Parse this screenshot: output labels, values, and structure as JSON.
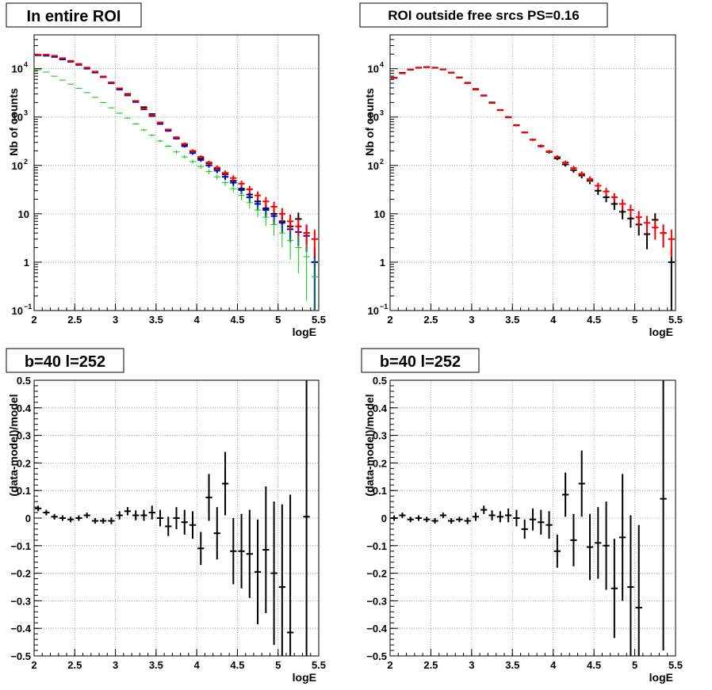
{
  "chart_data": [
    {
      "type": "scatter",
      "title": "In entire ROI",
      "xlabel": "logE",
      "ylabel": "Nb of counts",
      "xlim": [
        2,
        5.5
      ],
      "ylim": [
        0.1,
        50000
      ],
      "yscale": "log",
      "grid": true,
      "x_ticks": [
        "2",
        "2.5",
        "3",
        "3.5",
        "4",
        "4.5",
        "5",
        "5.5"
      ],
      "y_ticks": [
        {
          "v": 0.1,
          "b": "10",
          "e": "−1"
        },
        {
          "v": 1,
          "b": "1",
          "e": ""
        },
        {
          "v": 10,
          "b": "10",
          "e": ""
        },
        {
          "v": 100,
          "b": "10",
          "e": "2"
        },
        {
          "v": 1000,
          "b": "10",
          "e": "3"
        },
        {
          "v": 10000,
          "b": "10",
          "e": "4"
        }
      ],
      "x": [
        2.05,
        2.15,
        2.25,
        2.35,
        2.45,
        2.55,
        2.65,
        2.75,
        2.85,
        2.95,
        3.05,
        3.15,
        3.25,
        3.35,
        3.45,
        3.55,
        3.65,
        3.75,
        3.85,
        3.95,
        4.05,
        4.15,
        4.25,
        4.35,
        4.45,
        4.55,
        4.65,
        4.75,
        4.85,
        4.95,
        5.05,
        5.15,
        5.25,
        5.35,
        5.45
      ],
      "series": [
        {
          "color": "#000000",
          "values": [
            19000,
            19000,
            18000,
            16000,
            14000,
            12500,
            10500,
            8600,
            6900,
            5200,
            3900,
            3000,
            2150,
            1600,
            1150,
            770,
            550,
            380,
            270,
            195,
            140,
            110,
            85,
            65,
            48,
            33,
            25,
            18,
            13,
            10,
            7,
            5.5,
            7.8,
            4,
            1
          ]
        },
        {
          "color": "#0000cc",
          "values": [
            19000,
            18500,
            17500,
            15500,
            14000,
            12000,
            10000,
            8300,
            6700,
            5000,
            3700,
            2800,
            2050,
            1450,
            1050,
            720,
            520,
            360,
            250,
            180,
            130,
            100,
            78,
            58,
            44,
            31,
            22,
            16,
            12,
            9,
            6.5,
            4.8,
            4.2,
            3.5,
            1
          ]
        },
        {
          "color": "#ff0000",
          "values": [
            19500,
            19500,
            18500,
            16500,
            14500,
            12500,
            10500,
            8700,
            6900,
            5200,
            3900,
            2900,
            2150,
            1500,
            1100,
            760,
            550,
            380,
            280,
            200,
            150,
            115,
            90,
            70,
            55,
            42,
            32,
            24,
            18,
            14,
            10,
            7,
            5.5,
            4,
            3
          ]
        },
        {
          "color": "#00cc00",
          "values": [
            9500,
            8500,
            7000,
            5800,
            4800,
            3900,
            3200,
            2550,
            2000,
            1550,
            1200,
            950,
            720,
            540,
            420,
            320,
            250,
            190,
            150,
            120,
            95,
            75,
            58,
            44,
            33,
            24,
            17,
            12,
            8.5,
            6,
            4,
            2.8,
            2,
            1.3,
            0.5
          ]
        }
      ]
    },
    {
      "type": "scatter",
      "title": "ROI outside free srcs PS=0.16",
      "xlabel": "logE",
      "ylabel": "Nb of counts",
      "xlim": [
        2,
        5.5
      ],
      "ylim": [
        0.1,
        50000
      ],
      "yscale": "log",
      "grid": true,
      "x_ticks": [
        "2",
        "2.5",
        "3",
        "3.5",
        "4",
        "4.5",
        "5",
        "5.5"
      ],
      "y_ticks": [
        {
          "v": 0.1,
          "b": "10",
          "e": "−1"
        },
        {
          "v": 1,
          "b": "1",
          "e": ""
        },
        {
          "v": 10,
          "b": "10",
          "e": ""
        },
        {
          "v": 100,
          "b": "10",
          "e": "2"
        },
        {
          "v": 1000,
          "b": "10",
          "e": "3"
        },
        {
          "v": 10000,
          "b": "10",
          "e": "4"
        }
      ],
      "x": [
        2.05,
        2.15,
        2.25,
        2.35,
        2.45,
        2.55,
        2.65,
        2.75,
        2.85,
        2.95,
        3.05,
        3.15,
        3.25,
        3.35,
        3.45,
        3.55,
        3.65,
        3.75,
        3.85,
        3.95,
        4.05,
        4.15,
        4.25,
        4.35,
        4.45,
        4.55,
        4.65,
        4.75,
        4.85,
        4.95,
        5.05,
        5.15,
        5.25,
        5.35,
        5.45
      ],
      "series": [
        {
          "color": "#000000",
          "values": [
            6500,
            8200,
            9600,
            10500,
            10800,
            10500,
            9700,
            8300,
            6600,
            5100,
            3800,
            2800,
            2000,
            1400,
            1000,
            680,
            480,
            340,
            250,
            190,
            140,
            105,
            80,
            62,
            48,
            30,
            22,
            16,
            11,
            8,
            6,
            3.8,
            7.5,
            4,
            1
          ]
        },
        {
          "color": "#ff0000",
          "values": [
            6400,
            8000,
            9500,
            10400,
            10700,
            10400,
            9600,
            8200,
            6500,
            5000,
            3700,
            2750,
            1950,
            1380,
            980,
            670,
            480,
            340,
            255,
            195,
            150,
            115,
            88,
            67,
            52,
            38,
            29,
            22,
            16,
            12,
            8.5,
            6.5,
            5.2,
            4,
            3
          ]
        }
      ]
    },
    {
      "type": "scatter",
      "title": "b=40 l=252",
      "xlabel": "logE",
      "ylabel": "(data-model)/model",
      "xlim": [
        2,
        5.5
      ],
      "ylim": [
        -0.5,
        0.5
      ],
      "grid": true,
      "x_ticks": [
        "2",
        "2.5",
        "3",
        "3.5",
        "4",
        "4.5",
        "5",
        "5.5"
      ],
      "y_ticks": [
        {
          "v": 0.5,
          "label": "0.5"
        },
        {
          "v": 0.4,
          "label": "0.4"
        },
        {
          "v": 0.3,
          "label": "0.3"
        },
        {
          "v": 0.2,
          "label": "0.2"
        },
        {
          "v": 0.1,
          "label": "0.1"
        },
        {
          "v": 0,
          "label": "0"
        },
        {
          "v": -0.1,
          "label": "−0.1"
        },
        {
          "v": -0.2,
          "label": "−0.2"
        },
        {
          "v": -0.3,
          "label": "−0.3"
        },
        {
          "v": -0.4,
          "label": "−0.4"
        },
        {
          "v": -0.5,
          "label": "−0.5"
        }
      ],
      "x": [
        2.05,
        2.15,
        2.25,
        2.35,
        2.45,
        2.55,
        2.65,
        2.75,
        2.85,
        2.95,
        3.05,
        3.15,
        3.25,
        3.35,
        3.45,
        3.55,
        3.65,
        3.75,
        3.85,
        3.95,
        4.05,
        4.15,
        4.25,
        4.35,
        4.45,
        4.55,
        4.65,
        4.75,
        4.85,
        4.95,
        5.05,
        5.15,
        5.25,
        5.35,
        5.45
      ],
      "series": [
        {
          "color": "#000000",
          "values": [
            0.035,
            0.02,
            0.005,
            0.0,
            -0.005,
            0.0,
            0.01,
            -0.01,
            -0.01,
            -0.01,
            0.01,
            0.025,
            0.01,
            0.01,
            0.02,
            0.0,
            -0.03,
            0.0,
            -0.015,
            -0.025,
            -0.11,
            0.075,
            -0.055,
            0.125,
            -0.12,
            -0.12,
            -0.13,
            -0.195,
            -0.115,
            -0.2,
            -0.25,
            -0.415,
            null,
            0.005,
            null
          ],
          "errors": [
            0.01,
            0.01,
            0.01,
            0.01,
            0.01,
            0.01,
            0.01,
            0.01,
            0.01,
            0.012,
            0.015,
            0.015,
            0.018,
            0.02,
            0.025,
            0.03,
            0.035,
            0.04,
            0.045,
            0.05,
            0.06,
            0.085,
            0.095,
            0.115,
            0.12,
            0.135,
            0.16,
            0.19,
            0.23,
            0.26,
            0.3,
            0.5,
            null,
            0.65,
            null
          ]
        }
      ]
    },
    {
      "type": "scatter",
      "title": "b=40 l=252",
      "xlabel": "logE",
      "ylabel": "(data-model)/model",
      "xlim": [
        2,
        5.5
      ],
      "ylim": [
        -0.5,
        0.5
      ],
      "grid": true,
      "x_ticks": [
        "2",
        "2.5",
        "3",
        "3.5",
        "4",
        "4.5",
        "5",
        "5.5"
      ],
      "y_ticks": [
        {
          "v": 0.5,
          "label": "0.5"
        },
        {
          "v": 0.4,
          "label": "0.4"
        },
        {
          "v": 0.3,
          "label": "0.3"
        },
        {
          "v": 0.2,
          "label": "0.2"
        },
        {
          "v": 0.1,
          "label": "0.1"
        },
        {
          "v": 0,
          "label": "0"
        },
        {
          "v": -0.1,
          "label": "−0.1"
        },
        {
          "v": -0.2,
          "label": "−0.2"
        },
        {
          "v": -0.3,
          "label": "−0.3"
        },
        {
          "v": -0.4,
          "label": "−0.4"
        },
        {
          "v": -0.5,
          "label": "−0.5"
        }
      ],
      "x": [
        2.05,
        2.15,
        2.25,
        2.35,
        2.45,
        2.55,
        2.65,
        2.75,
        2.85,
        2.95,
        3.05,
        3.15,
        3.25,
        3.35,
        3.45,
        3.55,
        3.65,
        3.75,
        3.85,
        3.95,
        4.05,
        4.15,
        4.25,
        4.35,
        4.45,
        4.55,
        4.65,
        4.75,
        4.85,
        4.95,
        5.05,
        5.15,
        5.25,
        5.35,
        5.45
      ],
      "series": [
        {
          "color": "#000000",
          "values": [
            0.0,
            0.01,
            -0.005,
            0.0,
            -0.005,
            -0.01,
            0.01,
            -0.01,
            -0.005,
            -0.01,
            0.005,
            0.03,
            0.01,
            0.005,
            0.01,
            0.0,
            -0.04,
            -0.005,
            -0.015,
            -0.025,
            -0.12,
            0.085,
            -0.08,
            0.125,
            -0.105,
            -0.09,
            -0.1,
            -0.255,
            -0.07,
            -0.25,
            -0.325,
            null,
            null,
            0.07,
            null
          ],
          "errors": [
            0.01,
            0.01,
            0.01,
            0.01,
            0.01,
            0.01,
            0.01,
            0.01,
            0.01,
            0.012,
            0.015,
            0.015,
            0.018,
            0.02,
            0.025,
            0.03,
            0.035,
            0.04,
            0.045,
            0.05,
            0.06,
            0.08,
            0.095,
            0.12,
            0.12,
            0.13,
            0.16,
            0.18,
            0.23,
            0.26,
            0.3,
            null,
            null,
            0.55,
            null
          ]
        }
      ]
    }
  ]
}
